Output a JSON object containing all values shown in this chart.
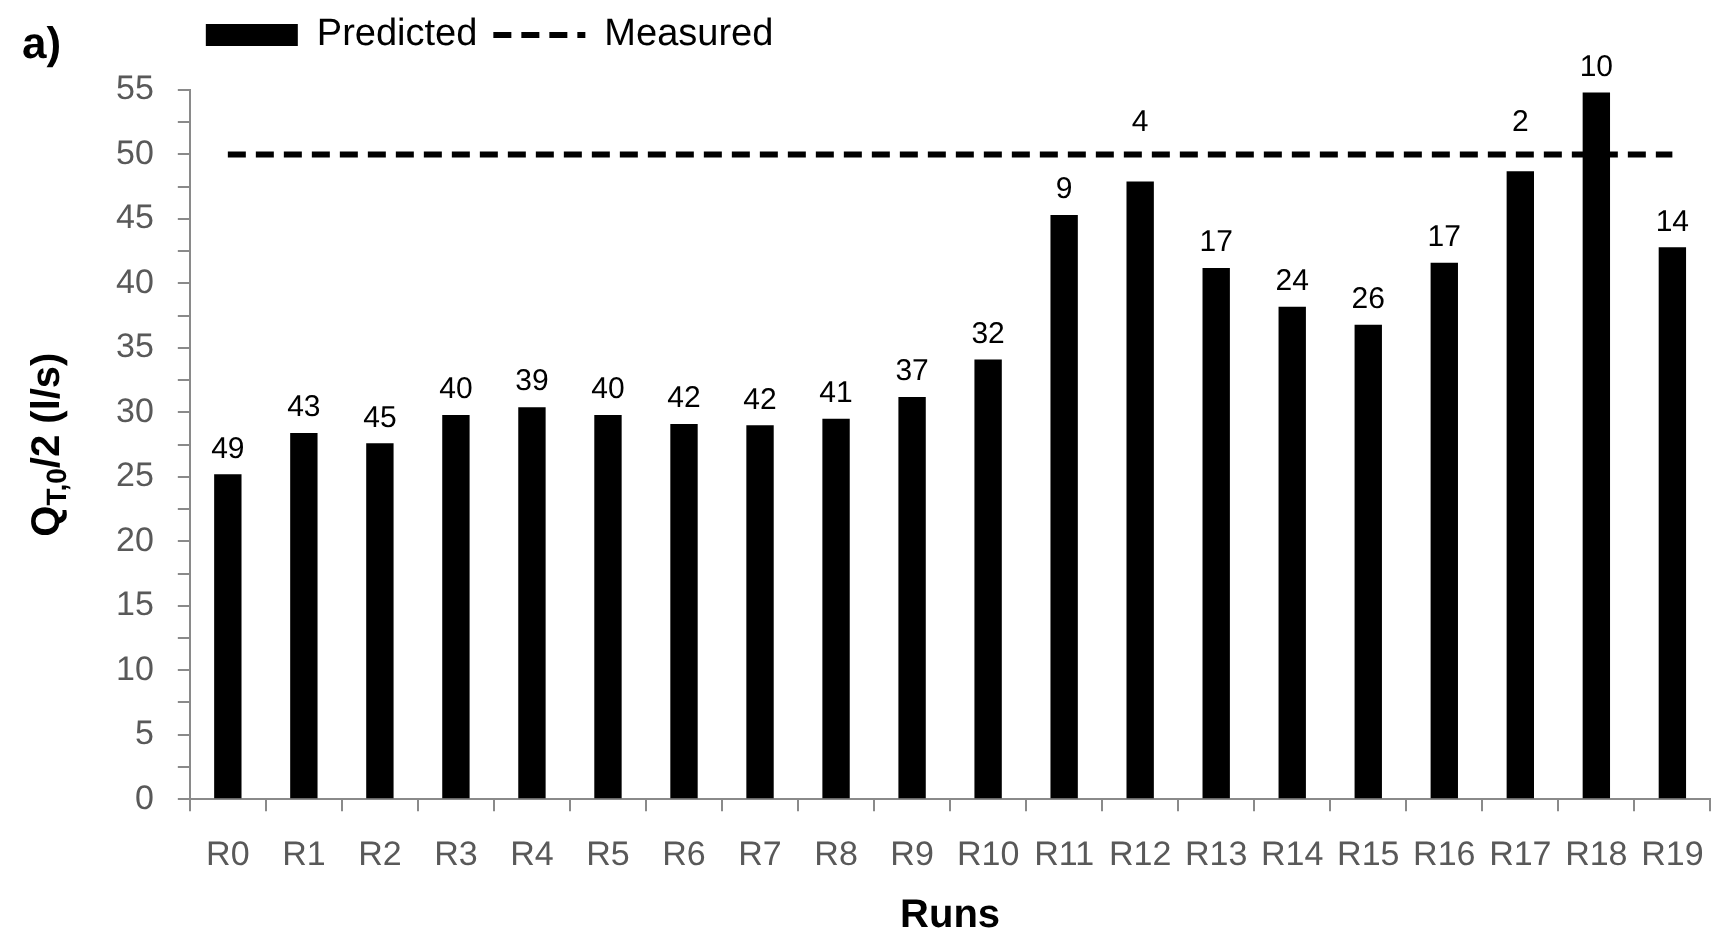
{
  "chart_data": {
    "type": "bar",
    "title": "a)",
    "xlabel": "Runs",
    "ylabel": "Q$_{T,0}$/2 (l/s)",
    "categories": [
      "R0",
      "R1",
      "R2",
      "R3",
      "R4",
      "R5",
      "R6",
      "R7",
      "R8",
      "R9",
      "R10",
      "R11",
      "R12",
      "R13",
      "R14",
      "R15",
      "R16",
      "R17",
      "R18",
      "R19"
    ],
    "series": [
      {
        "name": "Predicted",
        "color": "#000000",
        "values": [
          25.2,
          28.4,
          27.6,
          29.8,
          30.4,
          29.8,
          29.1,
          29.0,
          29.5,
          31.2,
          34.1,
          45.3,
          47.9,
          41.2,
          38.2,
          36.8,
          41.6,
          48.7,
          54.8,
          42.8
        ]
      },
      {
        "name": "Measured",
        "type": "line",
        "color": "#000000",
        "values": [
          50,
          50,
          50,
          50,
          50,
          50,
          50,
          50,
          50,
          50,
          50,
          50,
          50,
          50,
          50,
          50,
          50,
          50,
          50,
          50
        ],
        "line_style": "dashed",
        "marker": "none"
      }
    ],
    "annotations": [
      {
        "text": "49",
        "x": "R0",
        "y": 25.2
      },
      {
        "text": "43",
        "x": "R1",
        "y": 28.4
      },
      {
        "text": "45",
        "x": "R2",
        "y": 27.6
      },
      {
        "text": "40",
        "x": "R3",
        "y": 29.8
      },
      {
        "text": "39",
        "x": "R4",
        "y": 30.4
      },
      {
        "text": "40",
        "x": "R5",
        "y": 29.8
      },
      {
        "text": "42",
        "x": "R6",
        "y": 29.1
      },
      {
        "text": "42",
        "x": "R7",
        "y": 29.0
      },
      {
        "text": "41",
        "x": "R8",
        "y": 29.5
      },
      {
        "text": "37",
        "x": "R9",
        "y": 31.2
      },
      {
        "text": "32",
        "x": "R10",
        "y": 34.1
      },
      {
        "text": "9",
        "x": "R11",
        "y": 45.3
      },
      {
        "text": "4",
        "x": "R12",
        "y": 50.5
      },
      {
        "text": "17",
        "x": "R13",
        "y": 41.2
      },
      {
        "text": "24",
        "x": "R14",
        "y": 38.2
      },
      {
        "text": "26",
        "x": "R15",
        "y": 36.8
      },
      {
        "text": "17",
        "x": "R16",
        "y": 41.6
      },
      {
        "text": "2",
        "x": "R17",
        "y": 50.5
      },
      {
        "text": "10",
        "x": "R18",
        "y": 54.8
      },
      {
        "text": "14",
        "x": "R19",
        "y": 42.8
      }
    ],
    "ylim": [
      0,
      55
    ],
    "yticks": [
      0,
      {
        "value": 2.5,
        "label": null
      },
      5,
      {
        "value": 7.5,
        "label": null
      },
      10,
      {
        "value": 12.5,
        "label": null
      },
      15,
      {
        "value": 17.5,
        "label": null
      },
      20,
      {
        "value": 22.5,
        "label": null
      },
      25,
      {
        "value": 27.5,
        "label": null
      },
      30,
      {
        "value": 32.5,
        "label": null
      },
      35,
      {
        "value": 37.5,
        "label": null
      },
      40,
      {
        "value": 42.5,
        "label": null
      },
      45,
      {
        "value": 47.5,
        "label": null
      },
      50,
      {
        "value": 52.5,
        "label": null
      },
      55
    ],
    "legend": "top left"
  }
}
